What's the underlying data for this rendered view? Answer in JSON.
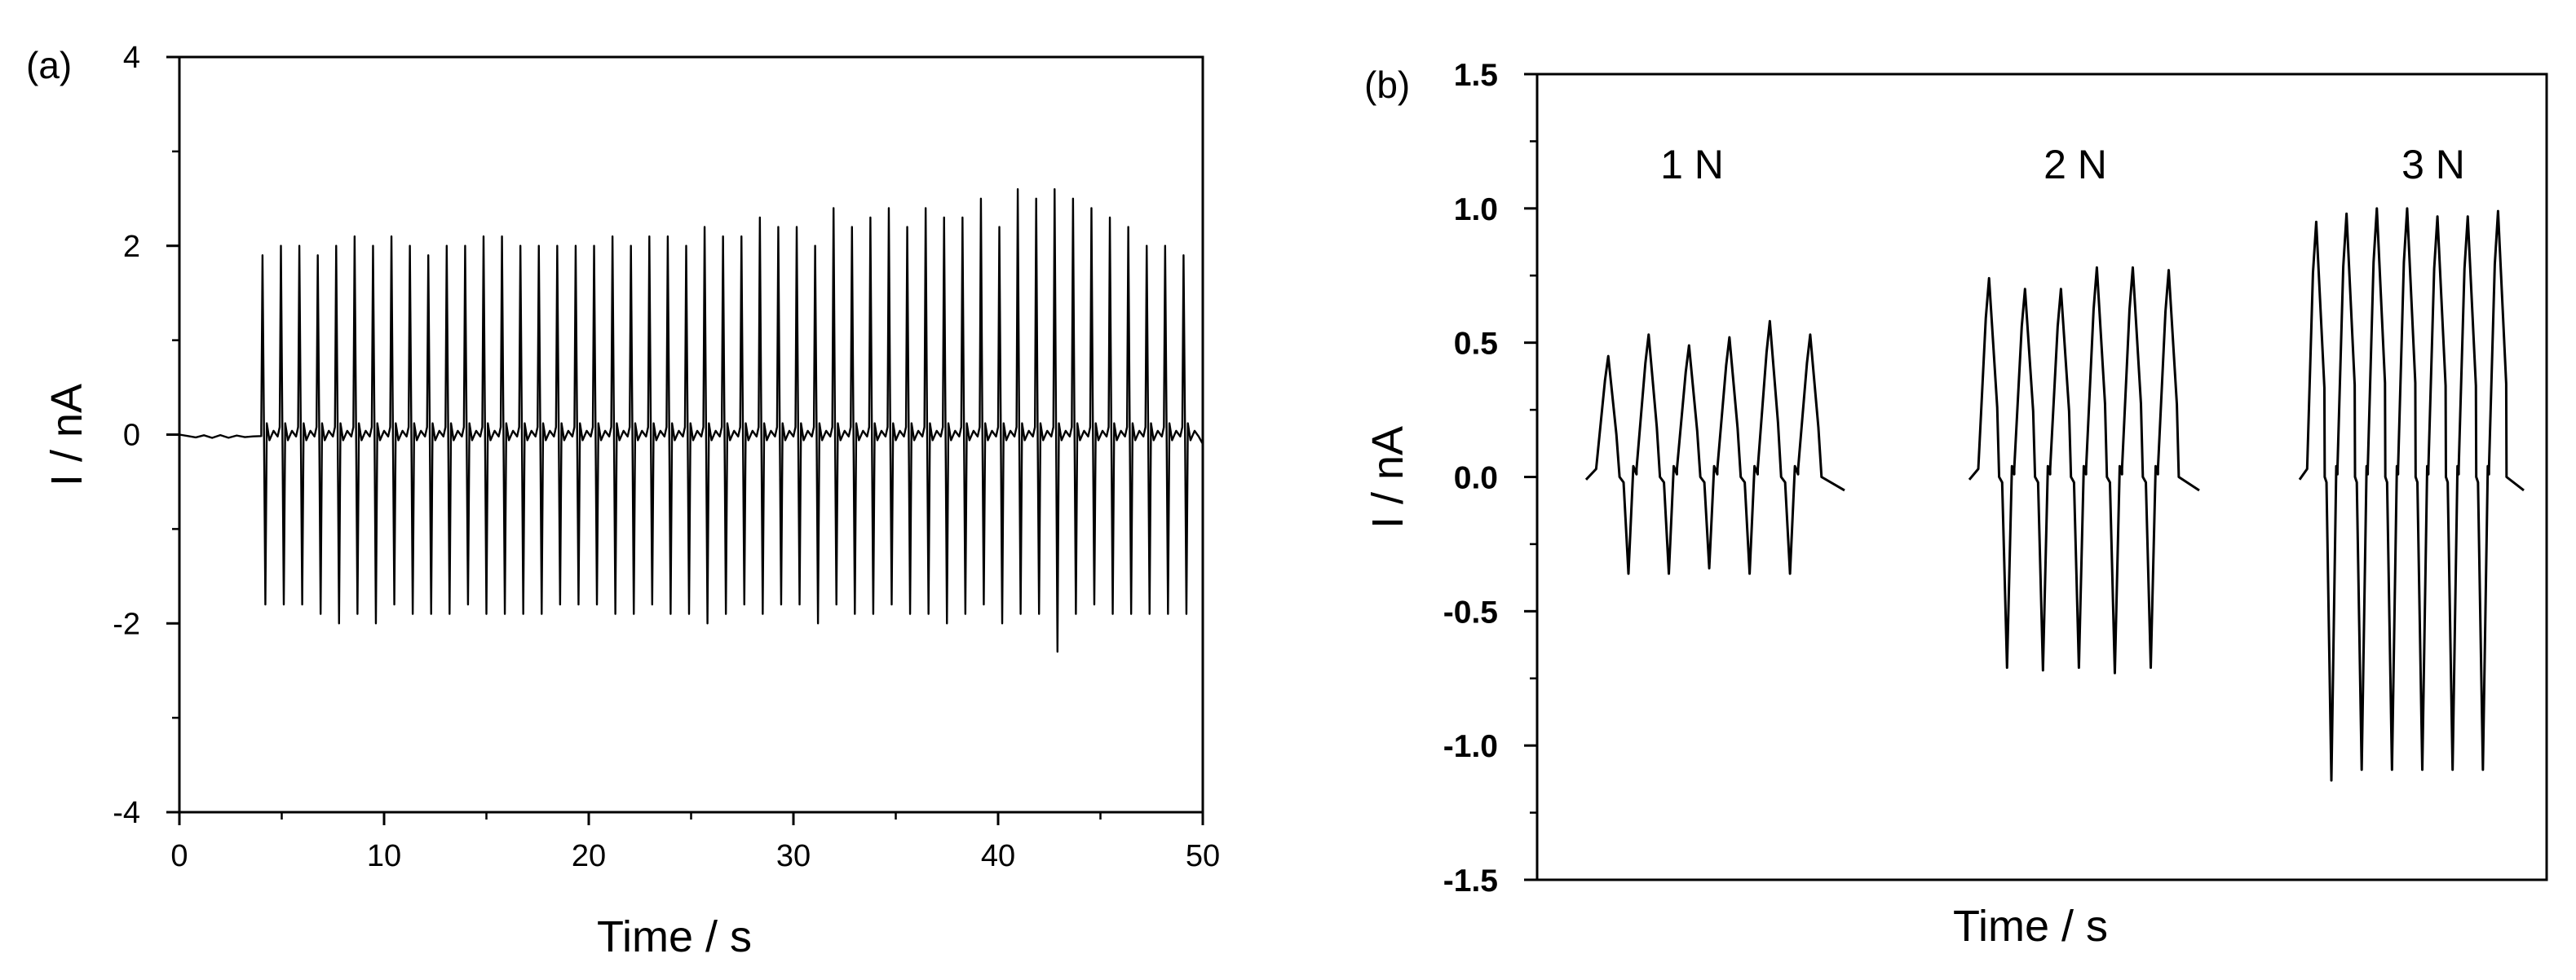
{
  "chart_data": [
    {
      "panel": "(a)",
      "type": "line",
      "xlabel": "Time / s",
      "ylabel": "I / nA",
      "xlim": [
        0,
        50
      ],
      "ylim": [
        -4,
        4
      ],
      "xticks": [
        0,
        10,
        20,
        30,
        40,
        50
      ],
      "yticks": [
        -4,
        -2,
        0,
        2,
        4
      ],
      "grid": false,
      "legend": "none",
      "line_color": "#000000",
      "baseline": {
        "x": [
          0,
          4.0
        ],
        "y": [
          0,
          0
        ]
      },
      "spikes": {
        "time": [
          4.0,
          4.9,
          5.8,
          6.7,
          7.6,
          8.5,
          9.4,
          10.3,
          11.2,
          12.1,
          13.0,
          13.9,
          14.8,
          15.7,
          16.6,
          17.5,
          18.4,
          19.3,
          20.2,
          21.1,
          22.0,
          22.9,
          23.8,
          24.7,
          25.6,
          26.5,
          27.4,
          28.3,
          29.2,
          30.1,
          31.0,
          31.9,
          32.8,
          33.7,
          34.6,
          35.5,
          36.4,
          37.3,
          38.2,
          39.1,
          40.0,
          40.9,
          41.8,
          42.7,
          43.6,
          44.5,
          45.4,
          46.3,
          47.2,
          48.1,
          49.0
        ],
        "max": [
          1.9,
          2.0,
          2.0,
          1.9,
          2.0,
          2.1,
          2.0,
          2.1,
          2.0,
          1.9,
          2.0,
          2.0,
          2.1,
          2.1,
          2.0,
          2.0,
          2.0,
          2.0,
          2.0,
          2.1,
          2.0,
          2.1,
          2.1,
          2.0,
          2.2,
          2.1,
          2.1,
          2.3,
          2.2,
          2.2,
          2.0,
          2.4,
          2.2,
          2.3,
          2.4,
          2.2,
          2.4,
          2.3,
          2.3,
          2.5,
          2.2,
          2.6,
          2.5,
          2.6,
          2.5,
          2.4,
          2.3,
          2.2,
          2.0,
          2.0,
          1.9
        ],
        "min": [
          -1.8,
          -1.8,
          -1.8,
          -1.9,
          -2.0,
          -1.9,
          -2.0,
          -1.8,
          -1.9,
          -1.9,
          -1.9,
          -1.8,
          -1.9,
          -1.9,
          -1.9,
          -1.9,
          -1.8,
          -1.8,
          -1.8,
          -1.9,
          -1.9,
          -1.8,
          -1.9,
          -1.9,
          -2.0,
          -1.9,
          -1.8,
          -1.9,
          -1.8,
          -1.8,
          -2.0,
          -1.8,
          -1.9,
          -1.9,
          -1.8,
          -1.9,
          -1.9,
          -2.0,
          -1.9,
          -1.8,
          -2.0,
          -1.9,
          -1.9,
          -2.3,
          -1.9,
          -1.8,
          -1.9,
          -1.9,
          -1.9,
          -1.9,
          -1.9
        ]
      },
      "end_value": -0.1
    },
    {
      "panel": "(b)",
      "type": "line",
      "xlabel": "Time / s",
      "ylabel": "I / nA",
      "ylim": [
        -1.5,
        1.5
      ],
      "yticks": [
        "1.5",
        "1.0",
        "0.5",
        "0.0",
        "-0.5",
        "-1.0",
        "-1.5"
      ],
      "grid": false,
      "legend": "none",
      "line_color": "#000000",
      "groups": [
        {
          "label": "1 N",
          "max": [
            0.45,
            0.53,
            0.49,
            0.52,
            0.58,
            0.53
          ],
          "min": [
            -0.36,
            -0.36,
            -0.34,
            -0.36,
            -0.36
          ]
        },
        {
          "label": "2 N",
          "max": [
            0.74,
            0.7,
            0.7,
            0.78,
            0.78,
            0.77
          ],
          "min": [
            -0.71,
            -0.72,
            -0.71,
            -0.73,
            -0.71
          ]
        },
        {
          "label": "3 N",
          "max": [
            0.95,
            0.98,
            1.0,
            1.0,
            0.97,
            0.97,
            0.99
          ],
          "min": [
            -1.13,
            -1.09,
            -1.09,
            -1.09,
            -1.09,
            -1.09
          ]
        }
      ]
    }
  ]
}
